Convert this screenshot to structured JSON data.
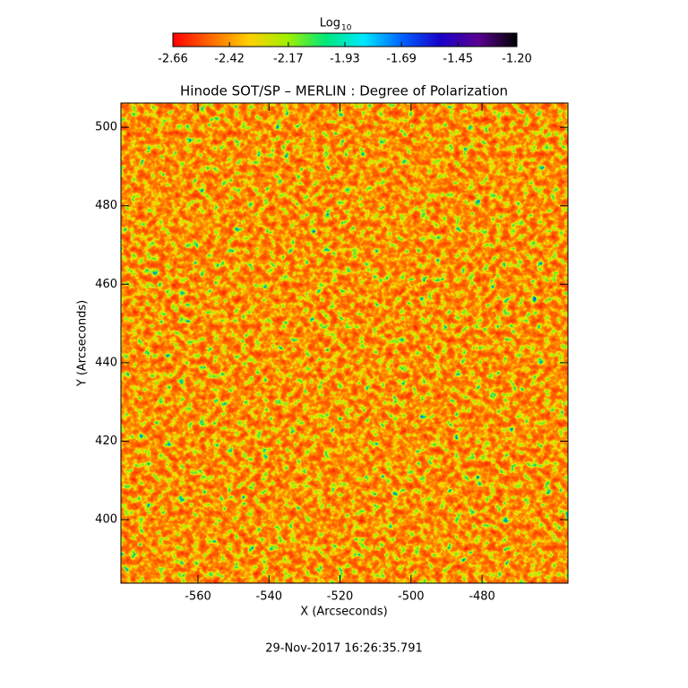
{
  "chart_data": {
    "type": "image",
    "title": "Hinode SOT/SP – MERLIN : Degree of Polarization",
    "x_label": "X (Arcseconds)",
    "y_label": "Y (Arcseconds)",
    "xlim": [
      -581.7,
      -455.8
    ],
    "ylim": [
      383.8,
      506.2
    ],
    "xticks": [
      -560,
      -540,
      -520,
      -500,
      -480
    ],
    "yticks": [
      400,
      420,
      440,
      460,
      480,
      500
    ],
    "colorbar": {
      "label": "Log",
      "label_subscript": "10",
      "lim": [
        -2.66,
        -1.2
      ],
      "ticks": [
        -2.66,
        -2.42,
        -2.17,
        -1.93,
        -1.69,
        -1.45,
        {
          "value": -1.2,
          "label": "-1.20"
        }
      ],
      "colormap": [
        "#ff0000",
        "#ff6a00",
        "#ffd000",
        "#a0f000",
        "#00e87a",
        "#00e8ff",
        "#0060ff",
        "#1a00c8",
        "#5a0090",
        "#000000"
      ]
    },
    "timestamp": "29-Nov-2017 16:26:35.791"
  }
}
